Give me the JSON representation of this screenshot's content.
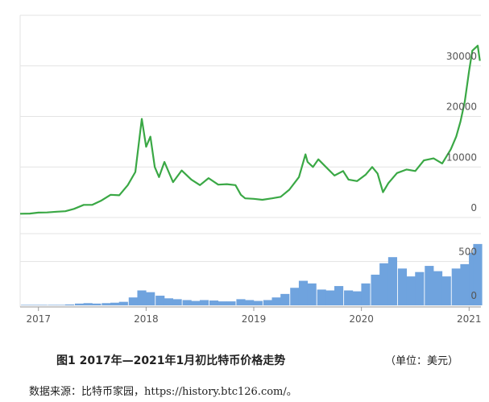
{
  "chart_data": [
    {
      "type": "line",
      "color": "#3aa845",
      "x": [
        2016.83,
        2016.92,
        2017.0,
        2017.08,
        2017.17,
        2017.25,
        2017.33,
        2017.42,
        2017.5,
        2017.58,
        2017.67,
        2017.75,
        2017.83,
        2017.9,
        2017.96,
        2018.0,
        2018.04,
        2018.08,
        2018.12,
        2018.17,
        2018.21,
        2018.25,
        2018.33,
        2018.42,
        2018.5,
        2018.58,
        2018.67,
        2018.75,
        2018.83,
        2018.88,
        2018.92,
        2019.0,
        2019.08,
        2019.17,
        2019.25,
        2019.33,
        2019.42,
        2019.48,
        2019.5,
        2019.55,
        2019.6,
        2019.67,
        2019.75,
        2019.83,
        2019.88,
        2019.96,
        2020.04,
        2020.1,
        2020.15,
        2020.2,
        2020.25,
        2020.33,
        2020.42,
        2020.5,
        2020.58,
        2020.67,
        2020.75,
        2020.83,
        2020.88,
        2020.92,
        2020.96,
        2021.0,
        2021.03,
        2021.08,
        2021.1
      ],
      "values": [
        750,
        780,
        980,
        1000,
        1150,
        1250,
        1700,
        2500,
        2500,
        3300,
        4500,
        4400,
        6400,
        9000,
        19500,
        14000,
        16000,
        10000,
        8000,
        11000,
        9000,
        7000,
        9300,
        7500,
        6400,
        7800,
        6500,
        6600,
        6400,
        4500,
        3800,
        3700,
        3500,
        3800,
        4100,
        5500,
        8000,
        12500,
        11000,
        10000,
        11500,
        10000,
        8300,
        9200,
        7500,
        7200,
        8500,
        10000,
        8700,
        5000,
        6800,
        8800,
        9500,
        9200,
        11300,
        11700,
        10700,
        13500,
        16000,
        19000,
        23000,
        29000,
        33000,
        34000,
        31000
      ],
      "xlim": [
        2016.83,
        2021.11
      ],
      "ylim": [
        0,
        40000
      ],
      "yticks": [
        0,
        10000,
        20000,
        30000
      ],
      "grid": true
    },
    {
      "type": "bar",
      "color": "#6fa3de",
      "x": [
        2016.88,
        2016.96,
        2017.04,
        2017.13,
        2017.21,
        2017.29,
        2017.38,
        2017.46,
        2017.54,
        2017.63,
        2017.71,
        2017.79,
        2017.88,
        2017.96,
        2018.04,
        2018.13,
        2018.21,
        2018.29,
        2018.38,
        2018.46,
        2018.54,
        2018.63,
        2018.71,
        2018.79,
        2018.88,
        2018.96,
        2019.04,
        2019.13,
        2019.21,
        2019.29,
        2019.38,
        2019.46,
        2019.54,
        2019.63,
        2019.71,
        2019.79,
        2019.88,
        2019.96,
        2020.04,
        2020.13,
        2020.21,
        2020.29,
        2020.38,
        2020.46,
        2020.54,
        2020.63,
        2020.71,
        2020.79,
        2020.88,
        2020.96,
        2021.04,
        2021.08
      ],
      "values": [
        5,
        5,
        5,
        5,
        5,
        10,
        20,
        25,
        20,
        25,
        30,
        40,
        90,
        170,
        150,
        110,
        80,
        70,
        60,
        50,
        60,
        55,
        45,
        45,
        70,
        60,
        50,
        60,
        90,
        130,
        200,
        280,
        250,
        180,
        170,
        220,
        170,
        160,
        250,
        350,
        480,
        550,
        420,
        330,
        380,
        450,
        390,
        330,
        420,
        470,
        600,
        700
      ],
      "xlim": [
        2016.83,
        2021.11
      ],
      "xticks": [
        2017,
        2018,
        2019,
        2020,
        2021
      ],
      "ylim": [
        0,
        800
      ],
      "yticks": [
        0,
        500
      ],
      "grid": true
    }
  ],
  "figure": {
    "caption": "图1  2017年—2021年1月初比特币价格走势",
    "unit": "（单位：美元）",
    "source": "数据来源：比特币家园，https://history.btc126.com/。"
  }
}
